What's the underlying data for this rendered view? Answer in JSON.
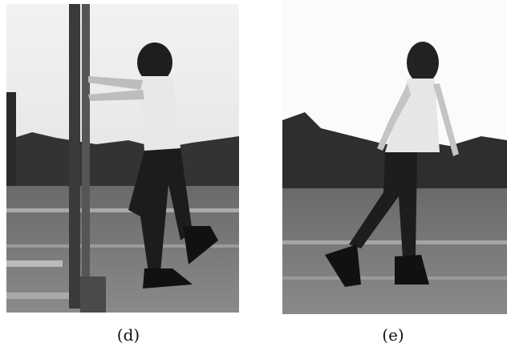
{
  "figure": {
    "panels": [
      {
        "caption": "(d)"
      },
      {
        "caption": "(e)"
      }
    ]
  }
}
